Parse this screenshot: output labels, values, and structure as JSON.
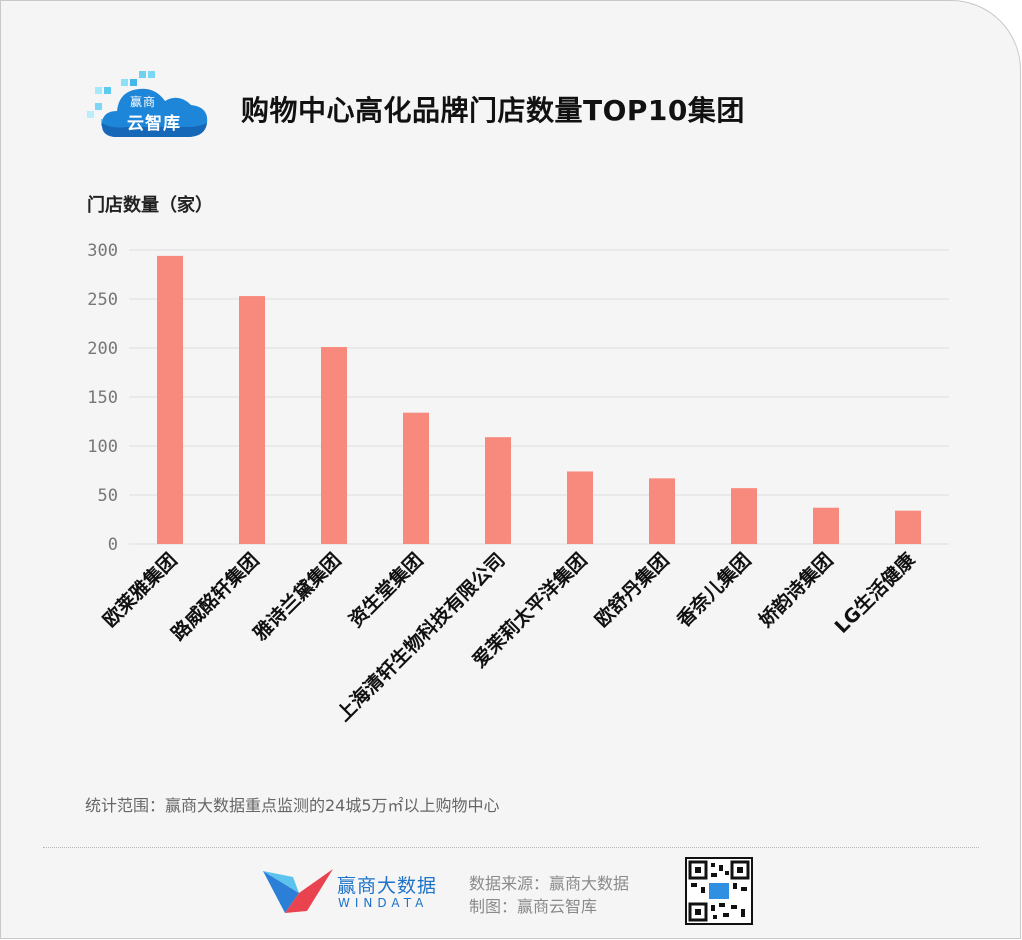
{
  "header": {
    "title": "购物中心高化品牌门店数量TOP10集团",
    "logo_line1": "赢商",
    "logo_line2": "云智库"
  },
  "colors": {
    "bar": "#f88a7d",
    "background": "#f5f5f5",
    "grid": "#dddddd",
    "brand_blue": "#1f73c9"
  },
  "chart_data": {
    "type": "bar",
    "ylabel": "门店数量（家）",
    "xlabel": "",
    "ylim": [
      0,
      300
    ],
    "yticks": [
      0,
      50,
      100,
      150,
      200,
      250,
      300
    ],
    "grid": "horizontal",
    "categories": [
      "欧莱雅集团",
      "路威酩轩集团",
      "雅诗兰黛集团",
      "资生堂集团",
      "上海清轩生物科技有限公司",
      "爱茉莉太平洋集团",
      "欧舒丹集团",
      "香奈儿集团",
      "娇韵诗集团",
      "LG生活健康"
    ],
    "values": [
      294,
      253,
      201,
      134,
      109,
      74,
      67,
      57,
      37,
      34
    ]
  },
  "footer": {
    "note": "统计范围：赢商大数据重点监测的24城5万㎡以上购物中心",
    "brand_name": "赢商大数据",
    "brand_sub": "WINDATA",
    "source": "数据来源：赢商大数据",
    "credit": "制图：赢商云智库"
  },
  "icons": {
    "logo": "cloud-logo-icon",
    "brand": "windata-bird-icon",
    "qr": "qr-code-icon"
  }
}
